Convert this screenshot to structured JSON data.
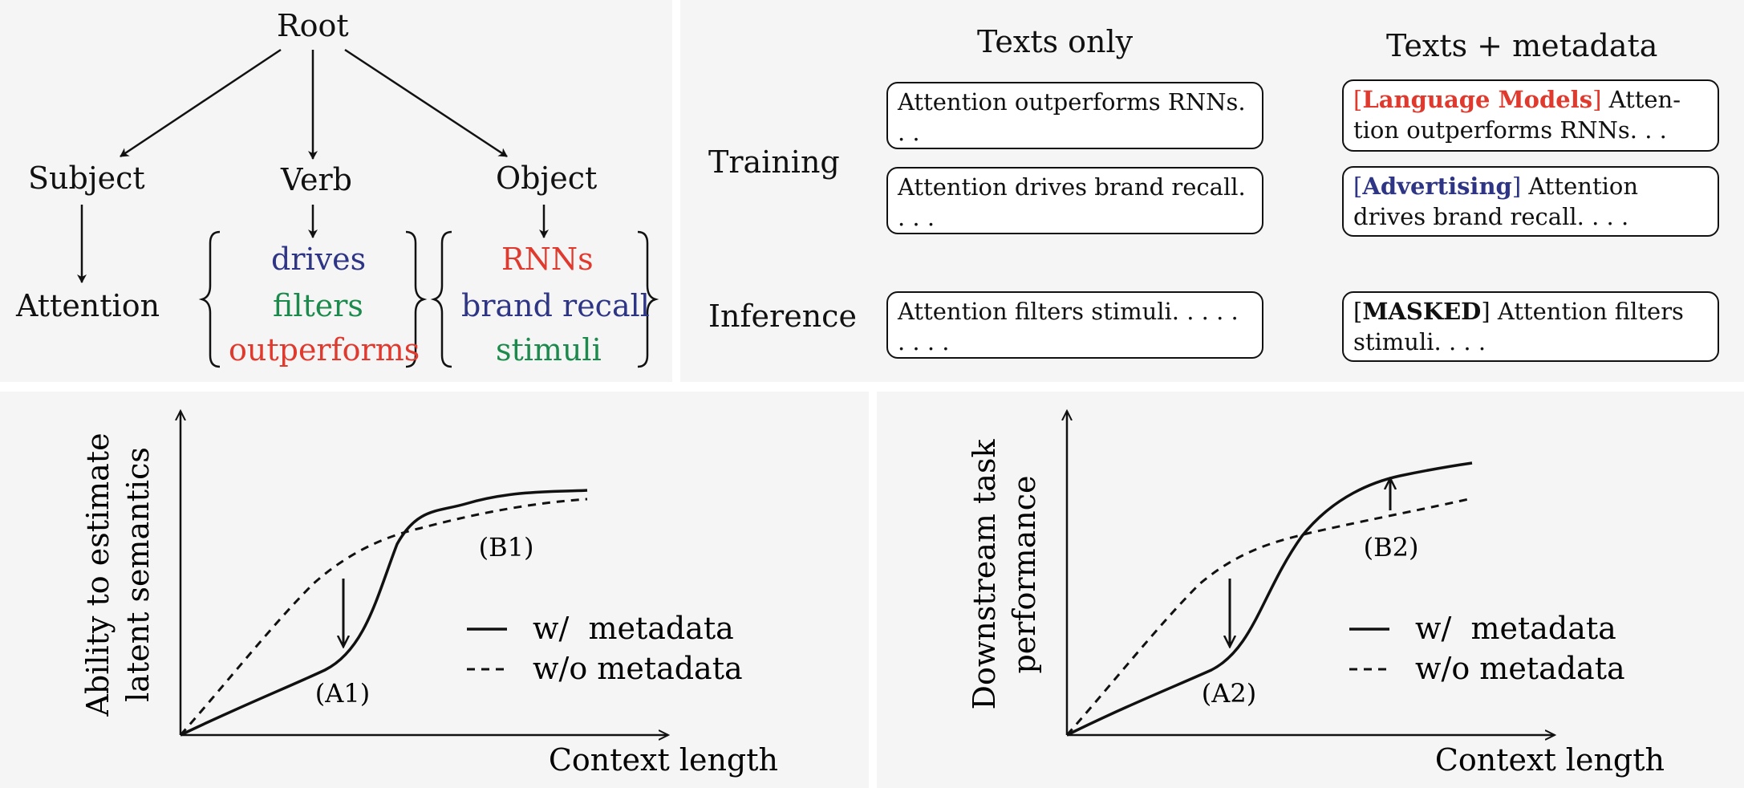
{
  "tree": {
    "root": "Root",
    "subject": "Subject",
    "verb": "Verb",
    "object": "Object",
    "subject_value": "Attention",
    "verbs": [
      {
        "text": "drives",
        "color": "#2e3585"
      },
      {
        "text": "filters",
        "color": "#1c8a4c"
      },
      {
        "text": "outperforms",
        "color": "#e0392d"
      }
    ],
    "objects": [
      {
        "text": "RNNs",
        "color": "#e0392d"
      },
      {
        "text": "brand recall",
        "color": "#2e3585"
      },
      {
        "text": "stimuli",
        "color": "#1c8a4c"
      }
    ]
  },
  "table": {
    "col_texts_only": "Texts only",
    "col_texts_meta": "Texts + metadata",
    "row_training": "Training",
    "row_inference": "Inference",
    "train_text_1": "Attention outperforms RNNs. . .",
    "train_text_2": "Attention drives brand recall. . . .",
    "infer_text": "Attention filters stimuli. . . . . . . . .",
    "meta_1": {
      "tag_open": "[",
      "tag": "Language Models",
      "tag_close": "]",
      "text": " Atten- tion outperforms RNNs. . .",
      "color": "#e0392d"
    },
    "meta_2": {
      "tag_open": "[",
      "tag": "Advertising",
      "tag_close": "]",
      "text": " Attention drives brand recall. . . .",
      "color": "#2e3585"
    },
    "meta_3": {
      "tag_open": "[",
      "tag": "MASKED",
      "tag_close": "]",
      "text": " Attention filters stimuli. . . .",
      "color": "#111111"
    }
  },
  "plots": [
    {
      "ylabel_line1": "Ability to estimate",
      "ylabel_line2": "latent semantics",
      "xlabel": "Context length",
      "annot_a": "(A1)",
      "annot_b": "(B1)",
      "legend_solid": "w/  metadata",
      "legend_dashed": "w/o metadata"
    },
    {
      "ylabel_line1": "Downstream task",
      "ylabel_line2": "performance",
      "xlabel": "Context length",
      "annot_a": "(A2)",
      "annot_b": "(B2)",
      "legend_solid": "w/  metadata",
      "legend_dashed": "w/o metadata"
    }
  ]
}
